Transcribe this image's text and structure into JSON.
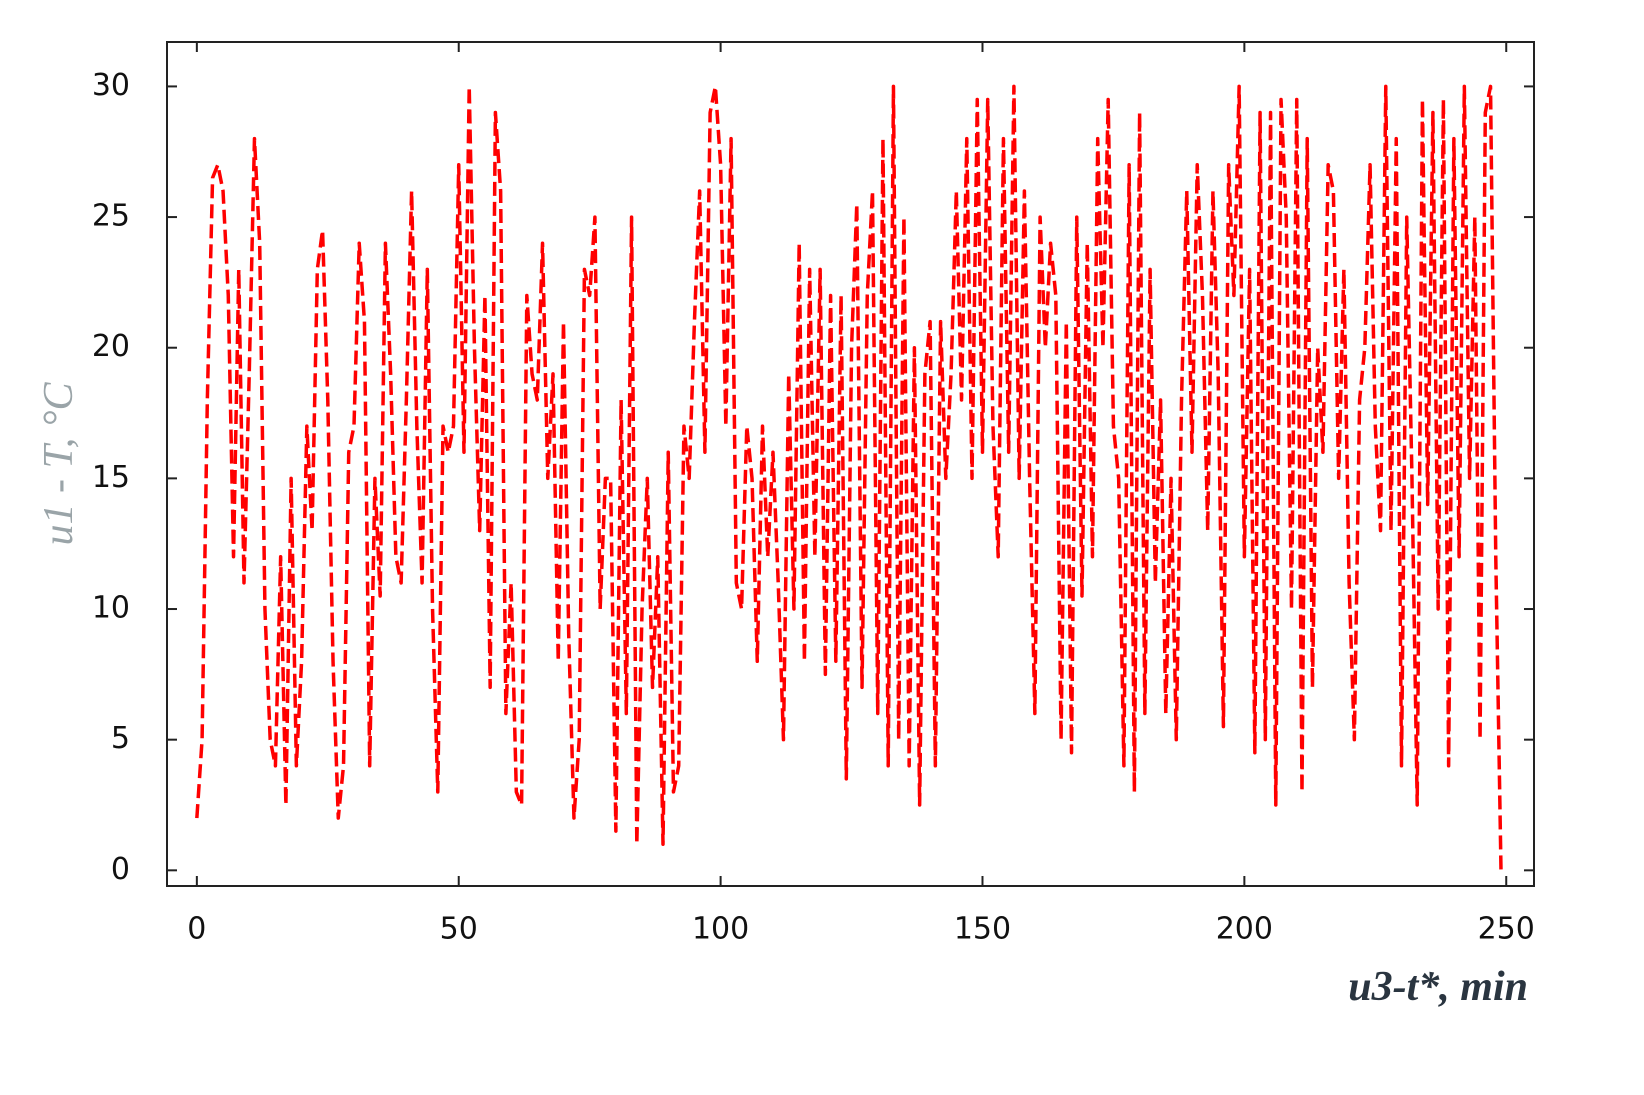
{
  "chart_data": {
    "type": "line",
    "xlabel": "u3-t*, min",
    "ylabel": "u1 - T, °C",
    "color": "#ff0000",
    "xlim": [
      -5.7,
      255.3
    ],
    "ylim": [
      -0.6,
      31.7
    ],
    "xticks": [
      0,
      50,
      100,
      150,
      200,
      250
    ],
    "yticks": [
      0,
      5,
      10,
      15,
      20,
      25,
      30
    ],
    "x": [
      0,
      1,
      2,
      3,
      4,
      5,
      6,
      7,
      8,
      9,
      10,
      11,
      12,
      13,
      14,
      15,
      16,
      17,
      18,
      19,
      20,
      21,
      22,
      23,
      24,
      25,
      26,
      27,
      28,
      29,
      30,
      31,
      32,
      33,
      34,
      35,
      36,
      37,
      38,
      39,
      40,
      41,
      42,
      43,
      44,
      45,
      46,
      47,
      48,
      49,
      50,
      51,
      52,
      53,
      54,
      55,
      56,
      57,
      58,
      59,
      60,
      61,
      62,
      63,
      64,
      65,
      66,
      67,
      68,
      69,
      70,
      71,
      72,
      73,
      74,
      75,
      76,
      77,
      78,
      79,
      80,
      81,
      82,
      83,
      84,
      85,
      86,
      87,
      88,
      89,
      90,
      91,
      92,
      93,
      94,
      95,
      96,
      97,
      98,
      99,
      100,
      101,
      102,
      103,
      104,
      105,
      106,
      107,
      108,
      109,
      110,
      111,
      112,
      113,
      114,
      115,
      116,
      117,
      118,
      119,
      120,
      121,
      122,
      123,
      124,
      125,
      126,
      127,
      128,
      129,
      130,
      131,
      132,
      133,
      134,
      135,
      136,
      137,
      138,
      139,
      140,
      141,
      142,
      143,
      144,
      145,
      146,
      147,
      148,
      149,
      150,
      151,
      152,
      153,
      154,
      155,
      156,
      157,
      158,
      159,
      160,
      161,
      162,
      163,
      164,
      165,
      166,
      167,
      168,
      169,
      170,
      171,
      172,
      173,
      174,
      175,
      176,
      177,
      178,
      179,
      180,
      181,
      182,
      183,
      184,
      185,
      186,
      187,
      188,
      189,
      190,
      191,
      192,
      193,
      194,
      195,
      196,
      197,
      198,
      199,
      200,
      201,
      202,
      203,
      204,
      205,
      206,
      207,
      208,
      209,
      210,
      211,
      212,
      213,
      214,
      215,
      216,
      217,
      218,
      219,
      220,
      221,
      222,
      223,
      224,
      225,
      226,
      227,
      228,
      229,
      230,
      231,
      232,
      233,
      234,
      235,
      236,
      237,
      238,
      239,
      240,
      241,
      242,
      243,
      244,
      245,
      246,
      247,
      248,
      249
    ],
    "values": [
      2,
      5,
      18,
      26.5,
      27,
      26,
      22,
      12,
      23,
      11,
      19,
      28,
      24,
      10,
      5,
      4,
      12,
      2.5,
      15,
      4,
      8,
      17,
      13,
      23,
      24.5,
      18,
      8,
      2,
      4,
      16,
      17,
      24,
      21,
      4,
      15,
      10.5,
      24,
      19,
      12,
      11,
      18,
      26,
      17,
      11,
      23,
      10,
      3,
      17,
      16,
      17,
      27,
      16,
      30,
      20,
      13,
      22,
      7,
      29,
      26,
      6,
      11,
      3,
      2.5,
      22,
      19,
      18,
      24,
      15,
      19,
      8,
      21,
      9,
      2,
      5,
      23,
      22,
      25,
      10,
      15,
      15,
      1.5,
      18,
      6,
      25,
      1,
      10,
      15,
      7,
      12,
      1,
      16,
      3,
      4,
      17,
      15,
      21,
      26,
      16,
      29,
      30,
      27,
      17,
      28,
      11,
      10,
      17,
      15,
      8,
      17,
      12,
      16,
      11,
      5,
      19,
      10,
      24,
      8,
      23,
      12,
      23,
      7.5,
      22,
      8,
      22,
      3.5,
      20,
      25.5,
      7,
      22,
      26,
      6,
      28,
      4,
      30,
      5,
      25,
      4,
      20,
      2.5,
      19,
      21,
      4,
      21,
      15,
      19,
      26,
      18,
      28,
      15,
      29.5,
      16,
      29.5,
      17,
      12,
      28,
      16,
      30,
      15,
      26,
      15,
      6,
      25,
      20,
      24,
      22,
      5,
      21,
      4.5,
      25,
      10.5,
      24,
      12,
      28,
      20,
      29.5,
      17,
      15,
      4,
      27,
      3,
      29,
      6,
      23,
      11,
      18,
      6,
      15,
      5,
      18,
      26,
      16,
      27,
      22,
      13,
      26,
      19,
      5.5,
      27,
      22,
      30,
      12,
      23,
      4.5,
      29,
      5,
      29,
      2.5,
      29.5,
      25,
      10,
      29.5,
      3,
      28,
      7,
      20,
      16,
      27,
      26,
      15,
      23,
      11,
      5,
      18,
      20,
      27,
      17,
      13,
      30,
      13,
      28,
      4,
      25,
      15,
      2.5,
      29.5,
      14,
      29,
      10,
      29.5,
      4,
      28,
      12,
      30,
      15,
      25,
      5,
      29,
      30,
      12,
      0
    ]
  }
}
